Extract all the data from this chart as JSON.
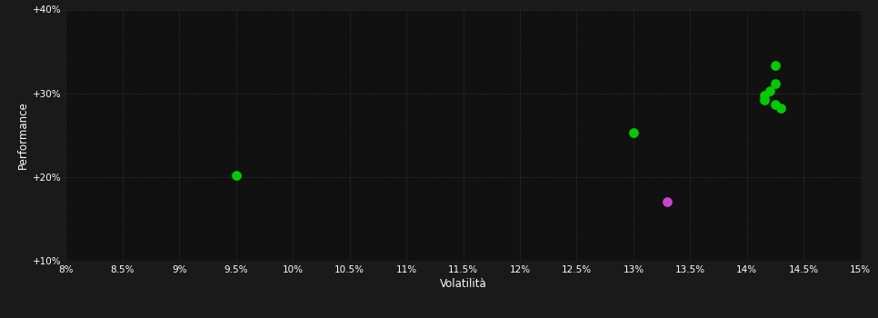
{
  "background_color": "#1a1a1a",
  "plot_bg_color": "#111111",
  "grid_color": "#3a3a3a",
  "text_color": "#ffffff",
  "xlabel": "Volatilità",
  "ylabel": "Performance",
  "xlim": [
    0.08,
    0.15
  ],
  "ylim": [
    0.1,
    0.4
  ],
  "xticks": [
    0.08,
    0.085,
    0.09,
    0.095,
    0.1,
    0.105,
    0.11,
    0.115,
    0.12,
    0.125,
    0.13,
    0.135,
    0.14,
    0.145,
    0.15
  ],
  "xtick_labels": [
    "8%",
    "8.5%",
    "9%",
    "9.5%",
    "10%",
    "10.5%",
    "11%",
    "11.5%",
    "12%",
    "12.5%",
    "13%",
    "13.5%",
    "14%",
    "14.5%",
    "15%"
  ],
  "yticks": [
    0.1,
    0.2,
    0.3,
    0.4
  ],
  "ytick_labels": [
    "+10%",
    "+20%",
    "+30%",
    "+40%"
  ],
  "green_points": [
    [
      0.095,
      0.202
    ],
    [
      0.13,
      0.253
    ],
    [
      0.1425,
      0.333
    ],
    [
      0.1425,
      0.312
    ],
    [
      0.142,
      0.303
    ],
    [
      0.1415,
      0.298
    ],
    [
      0.1415,
      0.292
    ],
    [
      0.1425,
      0.287
    ],
    [
      0.143,
      0.282
    ]
  ],
  "magenta_points": [
    [
      0.133,
      0.17
    ]
  ],
  "green_color": "#00cc00",
  "magenta_color": "#cc44cc",
  "marker_size": 45
}
